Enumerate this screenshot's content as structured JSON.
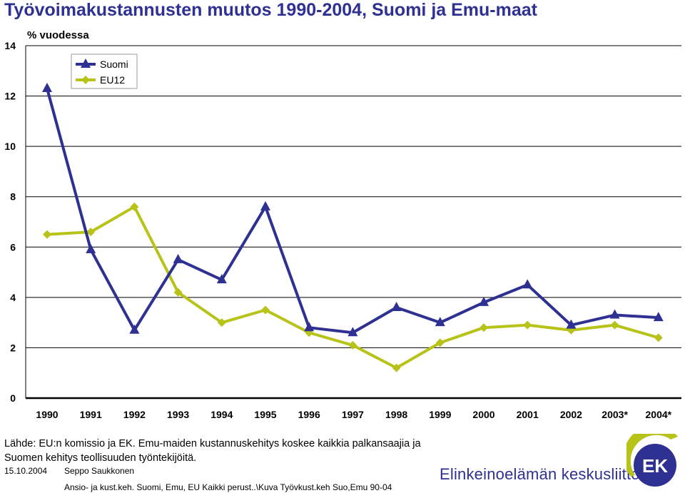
{
  "title": "Työvoimakustannusten muutos 1990-2004, Suomi ja Emu-maat",
  "y_axis_label": "% vuodessa",
  "source_text": "Lähde: EU:n komissio ja EK. Emu-maiden kustannuskehitys koskee kaikkia palkansaajia ja Suomen kehitys teollisuuden työntekijöitä.",
  "footer": {
    "date": "15.10.2004",
    "author": "Seppo Saukkonen",
    "path": "Ansio- ja kust.keh. Suomi, Emu, EU Kaikki perust..\\Kuva Työvkust.keh Suo,Emu 90-04",
    "organization": "Elinkeinoelämän keskusliitto",
    "logo_text": "EK"
  },
  "colors": {
    "title": "#2e3192",
    "suomi": "#2e3192",
    "eu12": "#b8c31a",
    "logo_blue": "#2e3192",
    "logo_green": "#b8c31a"
  },
  "chart_data": {
    "type": "line",
    "categories": [
      "1990",
      "1991",
      "1992",
      "1993",
      "1994",
      "1995",
      "1996",
      "1997",
      "1998",
      "1999",
      "2000",
      "2001",
      "2002",
      "2003*",
      "2004*"
    ],
    "series": [
      {
        "name": "Suomi",
        "marker": "triangle",
        "values": [
          12.3,
          5.9,
          2.7,
          5.5,
          4.7,
          7.6,
          2.8,
          2.6,
          3.6,
          3.0,
          3.8,
          4.5,
          2.9,
          3.3,
          3.2
        ]
      },
      {
        "name": "EU12",
        "marker": "diamond",
        "values": [
          6.5,
          6.6,
          7.6,
          4.2,
          3.0,
          3.5,
          2.6,
          2.1,
          1.2,
          2.2,
          2.8,
          2.9,
          2.7,
          2.9,
          2.4
        ]
      }
    ],
    "ylim": [
      0,
      14
    ],
    "yticks": [
      "0",
      "2",
      "4",
      "6",
      "8",
      "10",
      "12",
      "14"
    ],
    "ylabel": "% vuodessa",
    "grid": true,
    "legend": "top-left"
  }
}
